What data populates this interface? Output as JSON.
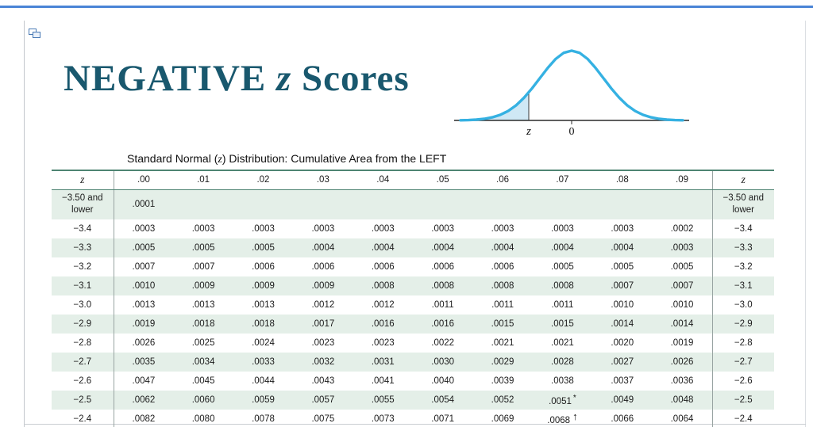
{
  "icons": {
    "page_tool_icon": "overlapping-pages-shape"
  },
  "colors": {
    "title_teal": "#19586e",
    "table_rule_green": "#4e8472",
    "row_shade_green": "#e4efe8",
    "top_bar_blue": "#4a84d6",
    "curve_stroke": "#35b1e2",
    "curve_tail_fill": "#cfe8f5"
  },
  "title": {
    "word": "NEGATIVE",
    "z": "z",
    "rest": "Scores"
  },
  "caption": {
    "pre": "Standard Normal (",
    "z": "z",
    "post": ") Distribution: Cumulative Area from the LEFT"
  },
  "curve": {
    "z_label": "z",
    "zero_label": "0"
  },
  "table": {
    "headers": [
      "z",
      ".00",
      ".01",
      ".02",
      ".03",
      ".04",
      ".05",
      ".06",
      ".07",
      ".08",
      ".09",
      "z"
    ],
    "rows": [
      {
        "z": "−3.50 and lower",
        "values": [
          ".0001",
          "",
          "",
          "",
          "",
          "",
          "",
          "",
          "",
          ""
        ]
      },
      {
        "z": "−3.4",
        "values": [
          ".0003",
          ".0003",
          ".0003",
          ".0003",
          ".0003",
          ".0003",
          ".0003",
          ".0003",
          ".0003",
          ".0002"
        ]
      },
      {
        "z": "−3.3",
        "values": [
          ".0005",
          ".0005",
          ".0005",
          ".0004",
          ".0004",
          ".0004",
          ".0004",
          ".0004",
          ".0004",
          ".0003"
        ]
      },
      {
        "z": "−3.2",
        "values": [
          ".0007",
          ".0007",
          ".0006",
          ".0006",
          ".0006",
          ".0006",
          ".0006",
          ".0005",
          ".0005",
          ".0005"
        ]
      },
      {
        "z": "−3.1",
        "values": [
          ".0010",
          ".0009",
          ".0009",
          ".0009",
          ".0008",
          ".0008",
          ".0008",
          ".0008",
          ".0007",
          ".0007"
        ]
      },
      {
        "z": "−3.0",
        "values": [
          ".0013",
          ".0013",
          ".0013",
          ".0012",
          ".0012",
          ".0011",
          ".0011",
          ".0011",
          ".0010",
          ".0010"
        ]
      },
      {
        "z": "−2.9",
        "values": [
          ".0019",
          ".0018",
          ".0018",
          ".0017",
          ".0016",
          ".0016",
          ".0015",
          ".0015",
          ".0014",
          ".0014"
        ]
      },
      {
        "z": "−2.8",
        "values": [
          ".0026",
          ".0025",
          ".0024",
          ".0023",
          ".0023",
          ".0022",
          ".0021",
          ".0021",
          ".0020",
          ".0019"
        ]
      },
      {
        "z": "−2.7",
        "values": [
          ".0035",
          ".0034",
          ".0033",
          ".0032",
          ".0031",
          ".0030",
          ".0029",
          ".0028",
          ".0027",
          ".0026"
        ]
      },
      {
        "z": "−2.6",
        "values": [
          ".0047",
          ".0045",
          ".0044",
          ".0043",
          ".0041",
          ".0040",
          ".0039",
          ".0038",
          ".0037",
          ".0036"
        ]
      },
      {
        "z": "−2.5",
        "values": [
          ".0062",
          ".0060",
          ".0059",
          ".0057",
          ".0055",
          ".0054",
          ".0052",
          ".0051",
          ".0049",
          ".0048"
        ],
        "marker": {
          "col": 7,
          "symbol": "*"
        }
      },
      {
        "z": "−2.4",
        "values": [
          ".0082",
          ".0080",
          ".0078",
          ".0075",
          ".0073",
          ".0071",
          ".0069",
          ".0068",
          ".0066",
          ".0064"
        ],
        "marker": {
          "col": 7,
          "symbol": "↑"
        }
      }
    ]
  }
}
